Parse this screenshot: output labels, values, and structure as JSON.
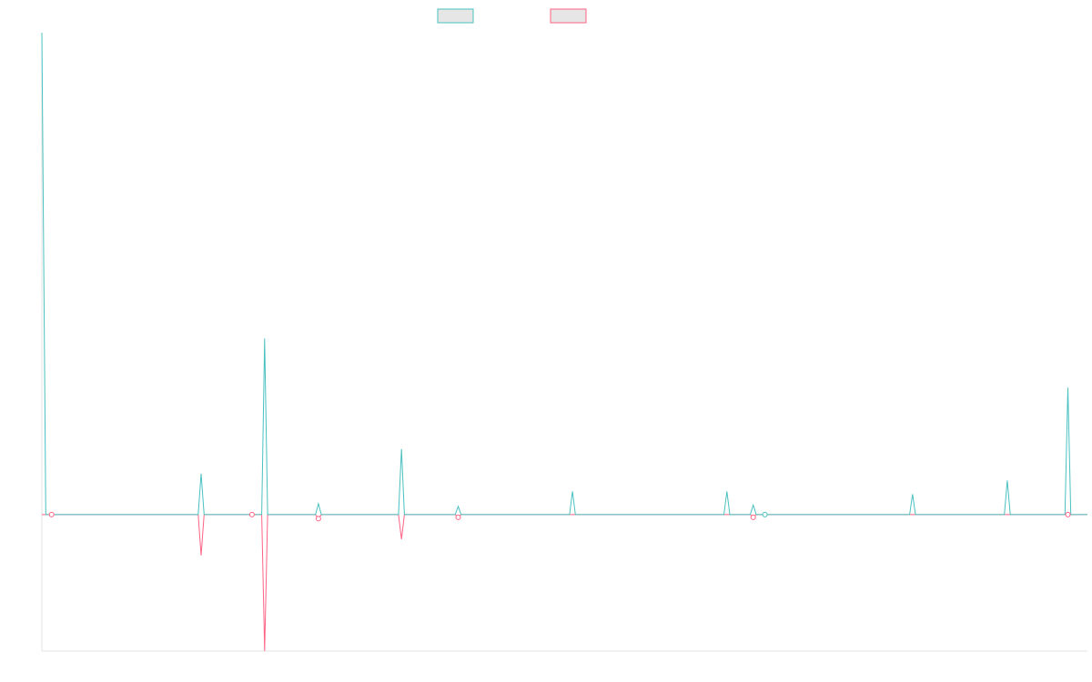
{
  "chart_data": {
    "type": "line",
    "title": "",
    "xlabel": "",
    "ylabel": "",
    "grid": false,
    "legend_position": "top-center",
    "ylim": [
      -100,
      353
    ],
    "xlim": [
      0,
      1070
    ],
    "colors": {
      "series_a": "#4bc0c0",
      "series_b": "#ff6384",
      "axis": "#e3e3e3"
    },
    "series": [
      {
        "color": "#4bc0c0",
        "points": [
          [
            0,
            353
          ],
          [
            4,
            0
          ],
          [
            10,
            0
          ],
          [
            160,
            0
          ],
          [
            163,
            30
          ],
          [
            166,
            0
          ],
          [
            215,
            0
          ],
          [
            225,
            0
          ],
          [
            228,
            129
          ],
          [
            231,
            0
          ],
          [
            280,
            0
          ],
          [
            283,
            8
          ],
          [
            286,
            0
          ],
          [
            365,
            0
          ],
          [
            368,
            48
          ],
          [
            371,
            0
          ],
          [
            423,
            0
          ],
          [
            426,
            6
          ],
          [
            429,
            0
          ],
          [
            540,
            0
          ],
          [
            543,
            17
          ],
          [
            546,
            0
          ],
          [
            698,
            0
          ],
          [
            701,
            17
          ],
          [
            704,
            0
          ],
          [
            725,
            0
          ],
          [
            728,
            7
          ],
          [
            731,
            0
          ],
          [
            740,
            0
          ],
          [
            888,
            0
          ],
          [
            891,
            15
          ],
          [
            894,
            0
          ],
          [
            985,
            0
          ],
          [
            988,
            25
          ],
          [
            991,
            0
          ],
          [
            1047,
            0
          ],
          [
            1050,
            93
          ],
          [
            1053,
            0
          ],
          [
            1070,
            0
          ]
        ]
      },
      {
        "color": "#ff6384",
        "points": [
          [
            0,
            0
          ],
          [
            10,
            0
          ],
          [
            160,
            0
          ],
          [
            163,
            -30
          ],
          [
            166,
            0
          ],
          [
            215,
            0
          ],
          [
            225,
            0
          ],
          [
            228,
            -100
          ],
          [
            231,
            0
          ],
          [
            280,
            0
          ],
          [
            283,
            -3
          ],
          [
            286,
            0
          ],
          [
            365,
            0
          ],
          [
            368,
            -18
          ],
          [
            371,
            0
          ],
          [
            423,
            0
          ],
          [
            426,
            -2
          ],
          [
            429,
            0
          ],
          [
            725,
            0
          ],
          [
            728,
            -2
          ],
          [
            731,
            0
          ],
          [
            740,
            0
          ],
          [
            891,
            0
          ],
          [
            894,
            0
          ],
          [
            1050,
            0
          ],
          [
            1070,
            0
          ]
        ]
      }
    ],
    "markers": [
      {
        "series": 1,
        "x": 10,
        "y": 0
      },
      {
        "series": 1,
        "x": 215,
        "y": 0
      },
      {
        "series": 1,
        "x": 283,
        "y": -3
      },
      {
        "series": 1,
        "x": 426,
        "y": -2
      },
      {
        "series": 1,
        "x": 728,
        "y": -2
      },
      {
        "series": 0,
        "x": 740,
        "y": 0
      },
      {
        "series": 1,
        "x": 1050,
        "y": 0
      }
    ]
  }
}
